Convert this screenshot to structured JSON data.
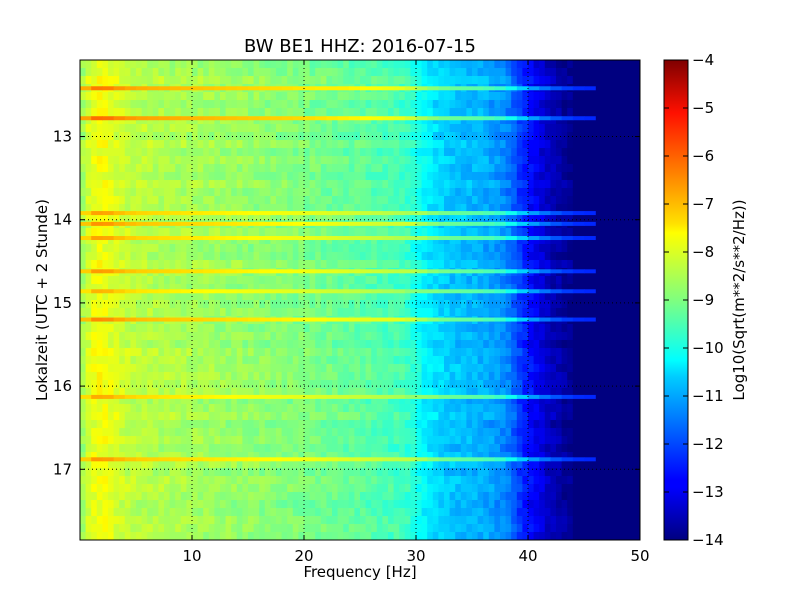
{
  "chart_data": {
    "type": "heatmap",
    "title": "BW BE1 HHZ: 2016-07-15",
    "xlabel": "Frequency [Hz]",
    "ylabel": "Lokalzeit (UTC + 2 Stunde)",
    "xlim": [
      0,
      50
    ],
    "ylim": [
      12.08,
      17.85
    ],
    "y_inverted": true,
    "x_ticks": [
      10,
      20,
      30,
      40,
      50
    ],
    "y_ticks": [
      13,
      14,
      15,
      16,
      17
    ],
    "grid": true,
    "colormap": "jet",
    "colorbar": {
      "label": "Log10(Sqrt(m**2/s**2/Hz))",
      "min": -14,
      "max": -4,
      "ticks": [
        -4,
        -5,
        -6,
        -7,
        -8,
        -9,
        -10,
        -11,
        -12,
        -13,
        -14
      ]
    },
    "frequency_profile": {
      "frequency_hz": [
        0,
        1,
        2,
        3,
        5,
        10,
        15,
        20,
        25,
        29,
        31,
        33,
        36,
        38,
        40,
        42,
        44,
        46,
        50
      ],
      "level": [
        -8.8,
        -8.0,
        -7.8,
        -8.1,
        -8.4,
        -8.6,
        -8.8,
        -9.0,
        -9.3,
        -9.6,
        -10.4,
        -10.8,
        -11.0,
        -11.4,
        -12.6,
        -13.4,
        -13.9,
        -14,
        -14
      ]
    },
    "horizontal_bands": [
      {
        "time_hour": 12.42,
        "level": -7.6
      },
      {
        "time_hour": 12.78,
        "level": -7.3
      },
      {
        "time_hour": 13.92,
        "level": -8.6
      },
      {
        "time_hour": 14.05,
        "level": -8.2
      },
      {
        "time_hour": 14.22,
        "level": -8.6
      },
      {
        "time_hour": 14.62,
        "level": -8.4
      },
      {
        "time_hour": 14.86,
        "level": -9.0
      },
      {
        "time_hour": 15.2,
        "level": -8.0
      },
      {
        "time_hour": 16.13,
        "level": -8.8
      },
      {
        "time_hour": 16.88,
        "level": -8.4
      }
    ]
  },
  "colors": {
    "frame": "#000000",
    "background": "#ffffff"
  }
}
